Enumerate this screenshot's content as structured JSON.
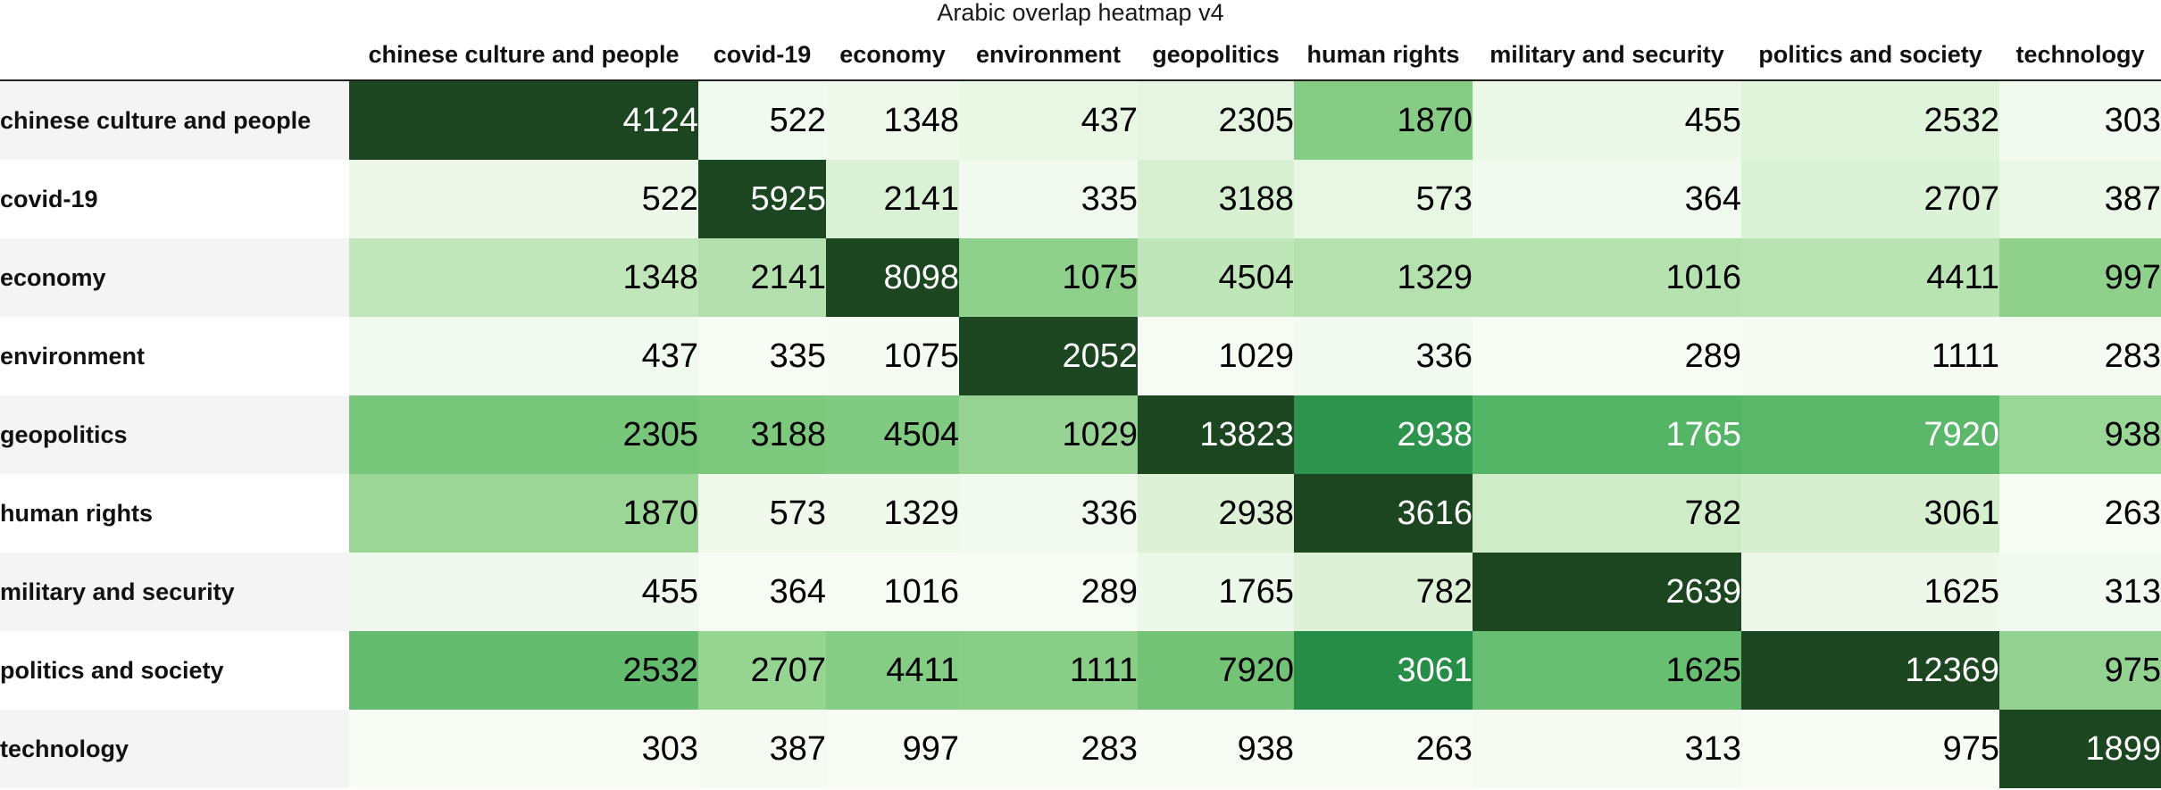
{
  "chart_data": {
    "type": "heatmap",
    "title": "Arabic overlap heatmap v4",
    "categories": [
      "chinese culture and people",
      "covid-19",
      "economy",
      "environment",
      "geopolitics",
      "human rights",
      "military and security",
      "politics and society",
      "technology"
    ],
    "values": [
      [
        4124,
        522,
        1348,
        437,
        2305,
        1870,
        455,
        2532,
        303
      ],
      [
        522,
        5925,
        2141,
        335,
        3188,
        573,
        364,
        2707,
        387
      ],
      [
        1348,
        2141,
        8098,
        1075,
        4504,
        1329,
        1016,
        4411,
        997
      ],
      [
        437,
        335,
        1075,
        2052,
        1029,
        336,
        289,
        1111,
        283
      ],
      [
        2305,
        3188,
        4504,
        1029,
        13823,
        2938,
        1765,
        7920,
        938
      ],
      [
        1870,
        573,
        1329,
        336,
        2938,
        3616,
        782,
        3061,
        263
      ],
      [
        455,
        364,
        1016,
        289,
        1765,
        782,
        2639,
        1625,
        313
      ],
      [
        2532,
        2707,
        4411,
        1111,
        7920,
        3061,
        1625,
        12369,
        975
      ],
      [
        303,
        387,
        997,
        283,
        938,
        263,
        313,
        975,
        1899
      ]
    ],
    "colormap": "Greens",
    "color_scale": "column-normalized",
    "colors": {
      "low": "#f7fcf5",
      "high": "#1b4620"
    }
  }
}
